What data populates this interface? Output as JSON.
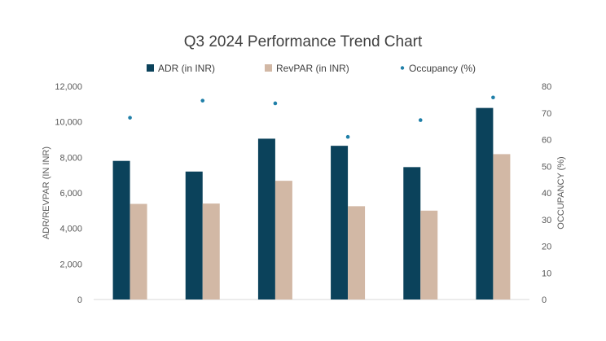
{
  "chart_data": {
    "type": "bar",
    "title": "Q3 2024 Performance Trend Chart",
    "categories": [
      "",
      "",
      "",
      "",
      "",
      ""
    ],
    "series": [
      {
        "name": "ADR (in INR)",
        "type": "bar",
        "axis": "left",
        "color": "#0B425B",
        "values": [
          7800,
          7200,
          9050,
          8650,
          7450,
          10780
        ]
      },
      {
        "name": "RevPAR (in INR)",
        "type": "bar",
        "axis": "left",
        "color": "#D2B8A5",
        "values": [
          5380,
          5400,
          6680,
          5250,
          5000,
          8180
        ]
      },
      {
        "name": "Occupancy (%)",
        "type": "scatter",
        "axis": "right",
        "color": "#1F7FA8",
        "values": [
          68.2,
          74.6,
          73.6,
          61.0,
          67.3,
          75.8
        ]
      }
    ],
    "ylabel": "ADR/REVPAR (IN INR)",
    "y2label": "OCCUPANCY (%)",
    "ylim": [
      0,
      12000
    ],
    "y2lim": [
      0,
      80
    ],
    "yticks": [
      "0",
      "2,000",
      "4,000",
      "6,000",
      "8,000",
      "10,000",
      "12,000"
    ],
    "y2ticks": [
      "0",
      "10",
      "20",
      "30",
      "40",
      "50",
      "60",
      "70",
      "80"
    ],
    "grid": false,
    "legend": "top-center"
  }
}
